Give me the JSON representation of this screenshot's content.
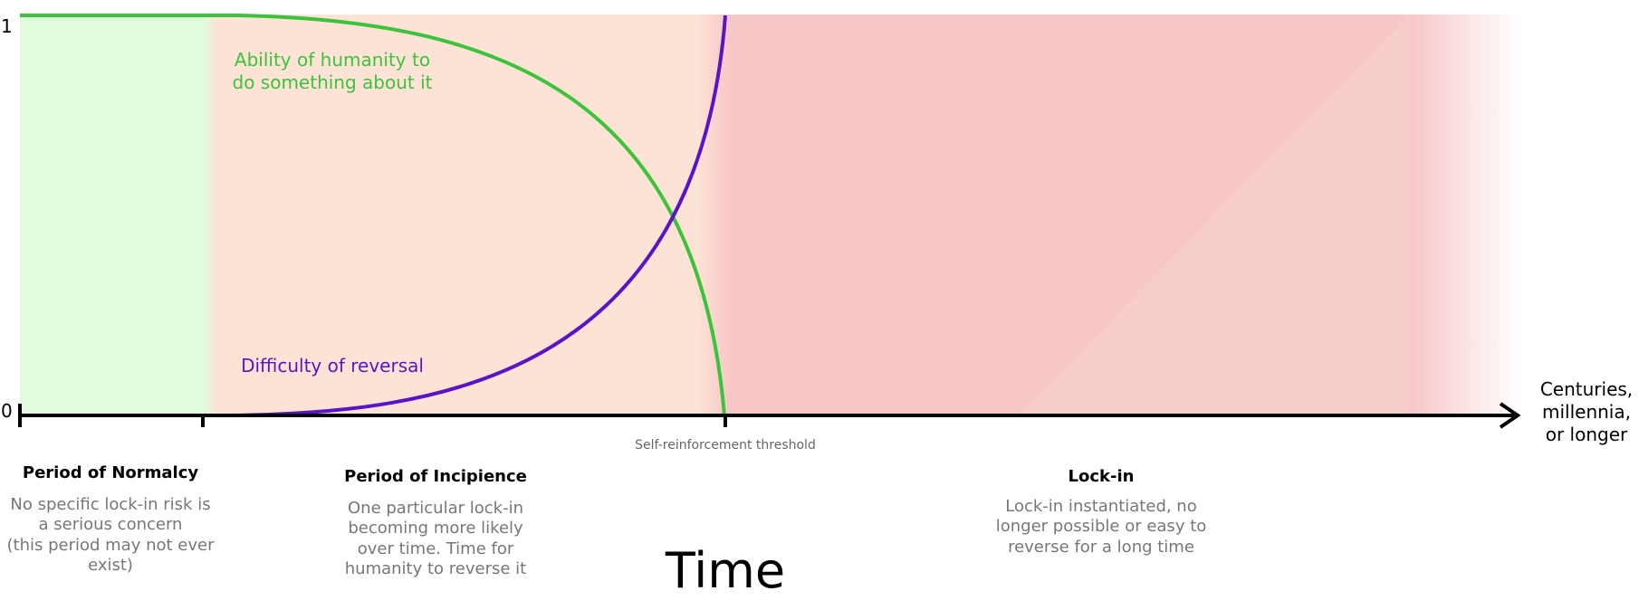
{
  "y_axis": {
    "max_label": "1",
    "min_label": "0"
  },
  "x_axis": {
    "title": "Time",
    "end_label": [
      "Centuries,",
      "millennia,",
      "or longer"
    ]
  },
  "curves": [
    {
      "name": "Ability of humanity to do something about it",
      "label_lines": [
        "Ability of humanity to",
        "do something about it"
      ],
      "color": "#3cc33c"
    },
    {
      "name": "Difficulty of reversal",
      "label_lines": [
        "Difficulty of reversal"
      ],
      "color": "#5a14c8"
    }
  ],
  "threshold": {
    "label": "Self-reinforcement threshold"
  },
  "phases": [
    {
      "title": "Period of Normalcy",
      "desc": [
        "No specific lock-in risk is",
        "a serious concern",
        "(this period may not ever",
        "exist)"
      ],
      "color": "#dffddb"
    },
    {
      "title": "Period of Incipience",
      "desc": [
        "One particular lock-in",
        "becoming more likely",
        "over time. Time for",
        "humanity to reverse it"
      ],
      "color": "#fde3d6"
    },
    {
      "title": "Lock-in",
      "desc": [
        "Lock-in instantiated, no",
        "longer possible or easy to",
        "reverse for a long time"
      ],
      "color": "#f7c6c7"
    }
  ]
}
